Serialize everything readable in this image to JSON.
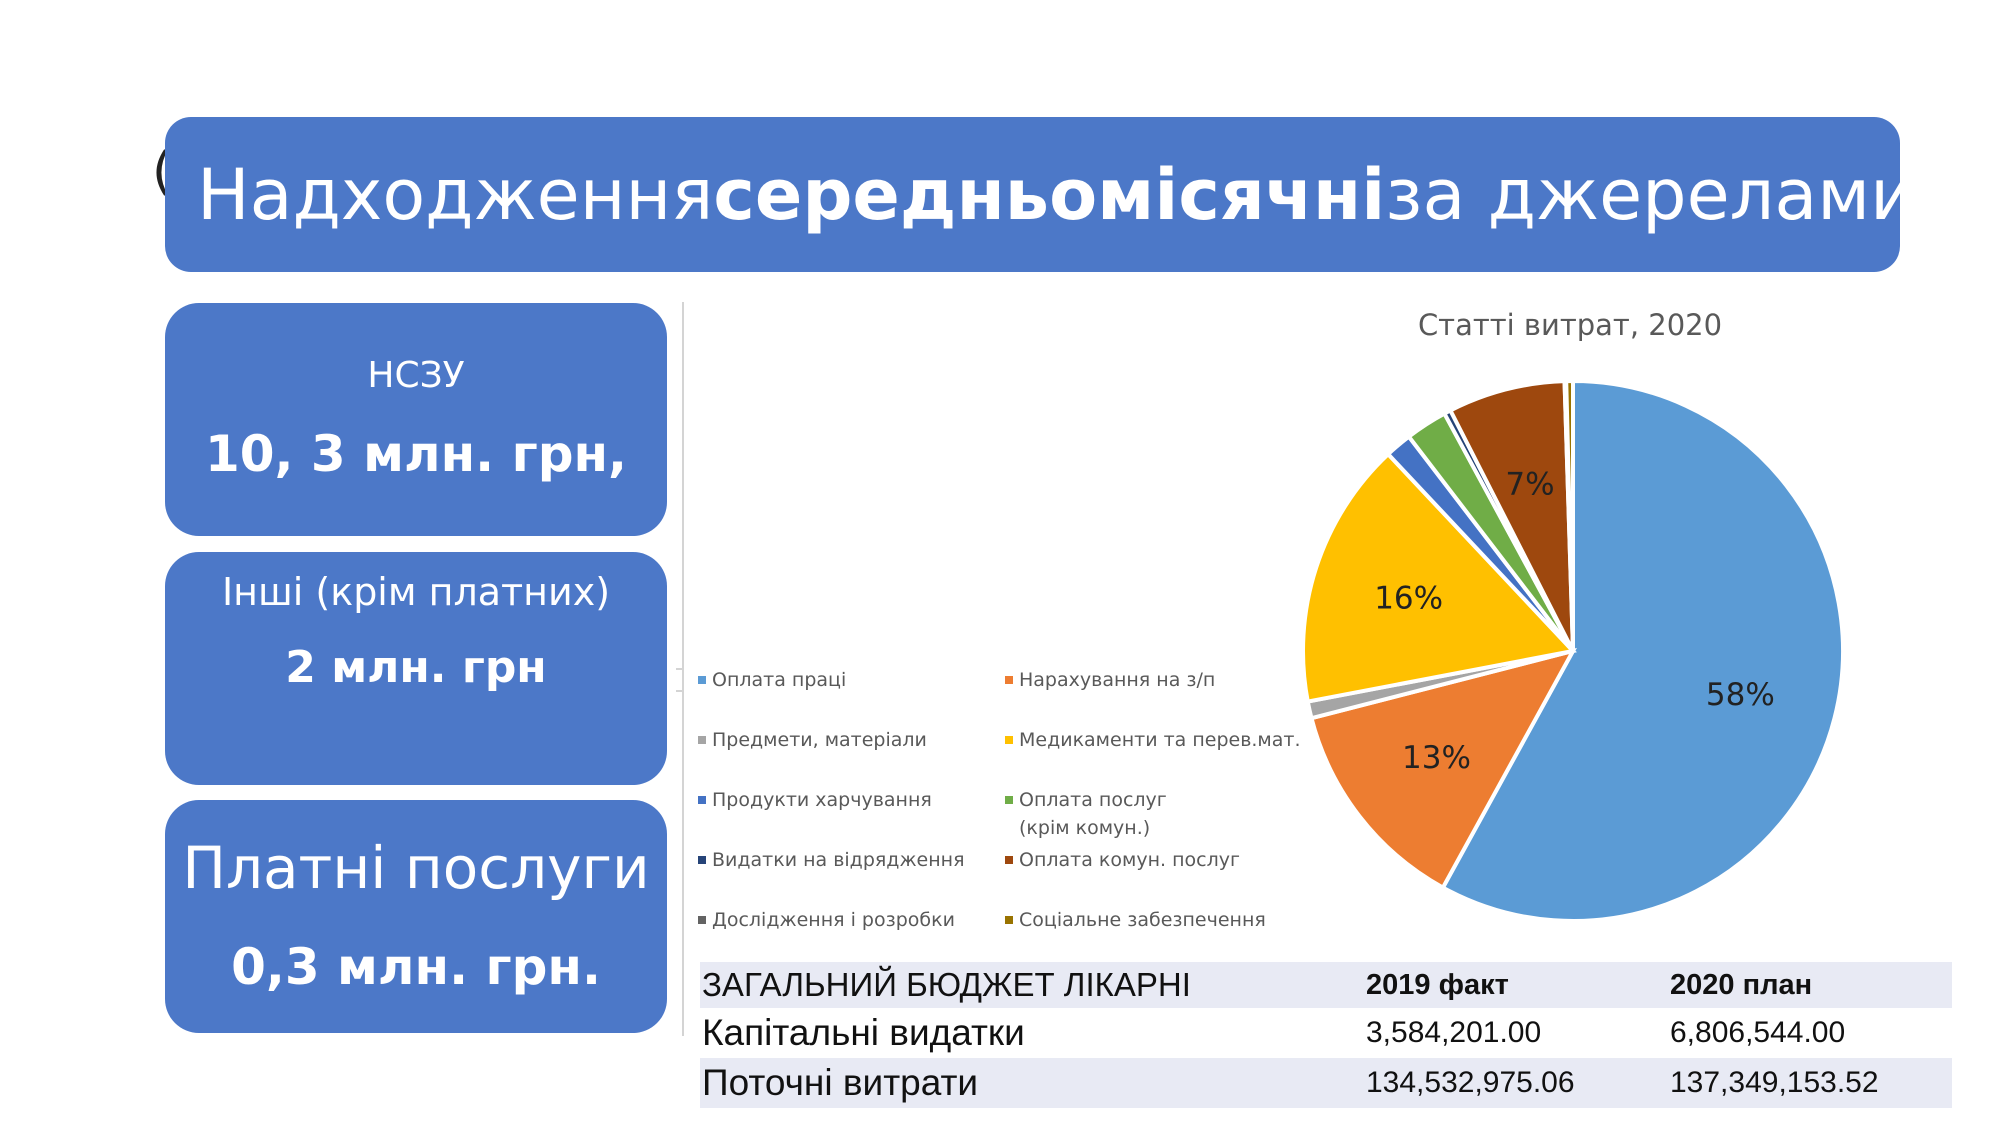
{
  "slide": {
    "title_prefix": "Надходження ",
    "title_bold": "середньомісячні",
    "title_suffix": " за джерелами",
    "stray_char": "("
  },
  "sources": [
    {
      "label": "НСЗУ",
      "value": "10, 3 млн. грн,"
    },
    {
      "label": "Інші (крім платних)",
      "value": "2 млн. грн"
    },
    {
      "label": "Платні послуги",
      "value": "0,3 млн. грн."
    }
  ],
  "chart_data": {
    "type": "pie",
    "title": "Статті витрат, 2020",
    "slices": [
      {
        "name": "Оплата праці",
        "value": 58,
        "label": "58%",
        "color": "#5b9bd5"
      },
      {
        "name": "Нарахування  на з/п",
        "value": 13,
        "label": "13%",
        "color": "#ed7d31"
      },
      {
        "name": "Предмети, матеріали",
        "value": 1,
        "label": "",
        "color": "#a5a5a5"
      },
      {
        "name": "Медикаменти та перев.мат.",
        "value": 16,
        "label": "16%",
        "color": "#ffc000"
      },
      {
        "name": "Продукти харчування",
        "value": 1.6,
        "label": "",
        "color": "#4472c4"
      },
      {
        "name": "Оплата послуг (крім комун.)",
        "value": 2.5,
        "label": "",
        "color": "#70ad47"
      },
      {
        "name": "Видатки на відрядження",
        "value": 0.4,
        "label": "",
        "color": "#264478"
      },
      {
        "name": "Оплата комун. послуг",
        "value": 7,
        "label": "7%",
        "color": "#9e480e"
      },
      {
        "name": "Дослідження і розробки",
        "value": 0.1,
        "label": "",
        "color": "#636363"
      },
      {
        "name": "Соціальне забезпечення",
        "value": 0.4,
        "label": "",
        "color": "#997300"
      }
    ],
    "legend": {
      "position": "left",
      "items": [
        {
          "line1": "Оплата праці",
          "line2": ""
        },
        {
          "line1": "Нарахування  на з/п",
          "line2": ""
        },
        {
          "line1": "Предмети, матеріали",
          "line2": ""
        },
        {
          "line1": "Медикаменти та перев.мат.",
          "line2": ""
        },
        {
          "line1": "Продукти харчування",
          "line2": ""
        },
        {
          "line1": "Оплата послуг",
          "line2": "(крім комун.)"
        },
        {
          "line1": "Видатки на відрядження",
          "line2": ""
        },
        {
          "line1": "Оплата комун. послуг",
          "line2": ""
        },
        {
          "line1": "Дослідження і розробки",
          "line2": ""
        },
        {
          "line1": "Соціальне забезпечення",
          "line2": ""
        }
      ]
    }
  },
  "budget_table": {
    "header": [
      "ЗАГАЛЬНИЙ БЮДЖЕТ ЛІКАРНІ",
      "2019 факт",
      "2020 план"
    ],
    "rows": [
      [
        "Капітальні видатки",
        "3,584,201.00",
        "6,806,544.00"
      ],
      [
        "Поточні витрати",
        "134,532,975.06",
        "137,349,153.52"
      ]
    ]
  }
}
